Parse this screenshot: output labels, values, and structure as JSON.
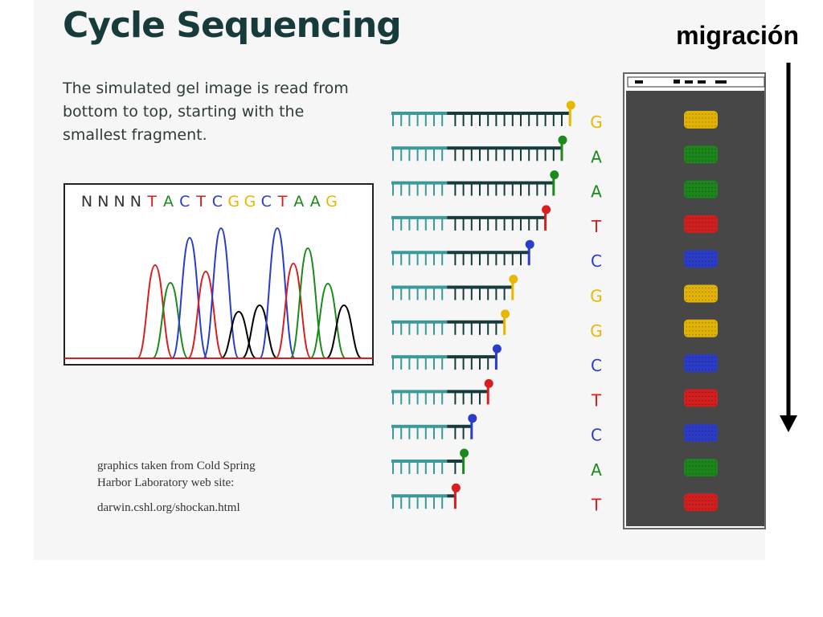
{
  "slide": {
    "title": "Cycle Sequencing",
    "subtitle": "The simulated gel image is read from bottom to top, starting with the smallest fragment.",
    "credit_line1": "graphics taken from Cold Spring",
    "credit_line2": "Harbor Laboratory web site:",
    "credit_url": "darwin.cshl.org/shockan.html",
    "migration_label": "migración"
  },
  "chromatogram": {
    "sequence_prefix": "NNNN",
    "sequence_bases": [
      "T",
      "A",
      "C",
      "T",
      "C",
      "G",
      "G",
      "C",
      "T",
      "A",
      "A",
      "G"
    ],
    "peak_order": [
      "T",
      "A",
      "C",
      "T",
      "C",
      "G",
      "G",
      "C",
      "T",
      "A",
      "A",
      "G"
    ]
  },
  "fragments": {
    "bases": [
      "G",
      "A",
      "A",
      "T",
      "C",
      "G",
      "G",
      "C",
      "T",
      "C",
      "A",
      "T"
    ],
    "dark_segments": [
      15,
      14,
      13,
      12,
      10,
      8,
      7,
      6,
      5,
      3,
      2,
      1
    ]
  },
  "base_colors": {
    "G": "#e8b800",
    "A": "#1a8a1a",
    "T": "#d81e1e",
    "C": "#2a3ccc",
    "N": "#333333"
  },
  "colors": {
    "primer": "#3a9a9a",
    "extension": "#173b3b",
    "gel_bg": "#474747"
  }
}
